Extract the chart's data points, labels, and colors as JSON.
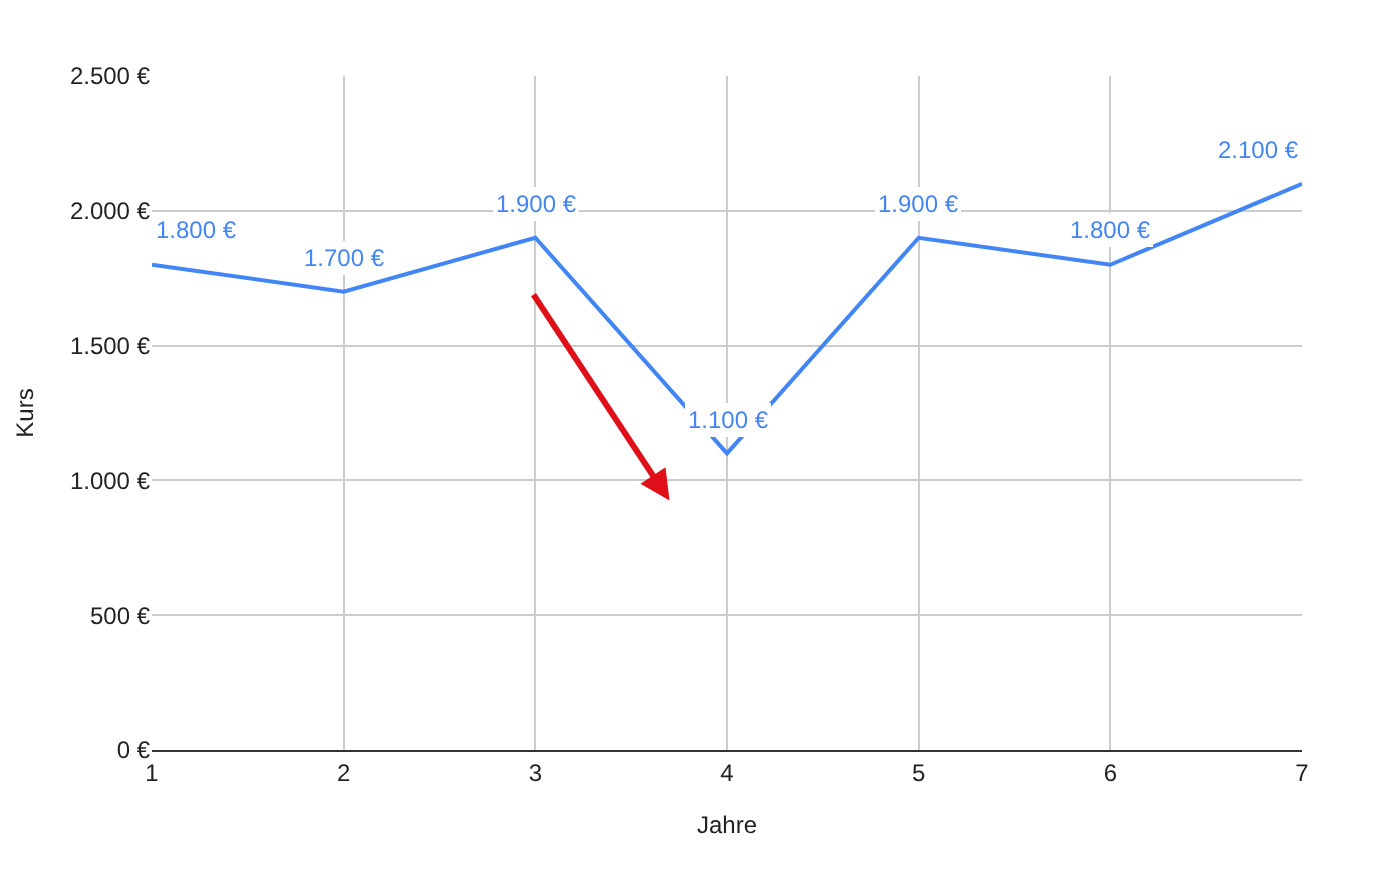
{
  "chart_data": {
    "type": "line",
    "xlabel": "Jahre",
    "ylabel": "Kurs",
    "x": [
      1,
      2,
      3,
      4,
      5,
      6,
      7
    ],
    "series": [
      {
        "color": "#4285f4",
        "values": [
          1800,
          1700,
          1900,
          1100,
          1900,
          1800,
          2100
        ],
        "value_labels": [
          "1.800 €",
          "1.700 €",
          "1.900 €",
          "1.100 €",
          "1.900 €",
          "1.800 €",
          "2.100 €"
        ]
      }
    ],
    "xlim": [
      1,
      7
    ],
    "xticks": [
      1,
      2,
      3,
      4,
      5,
      6,
      7
    ],
    "ylim": [
      0,
      2500
    ],
    "yticks": [
      {
        "value": 0,
        "label": "0 €"
      },
      {
        "value": 500,
        "label": "500 €"
      },
      {
        "value": 1000,
        "label": "1.000 €"
      },
      {
        "value": 1500,
        "label": "1.500 €"
      },
      {
        "value": 2000,
        "label": "2.000 €"
      },
      {
        "value": 2500,
        "label": "2.500 €"
      }
    ],
    "grid": true,
    "legend": false,
    "marker": "none",
    "line_style": "solid"
  }
}
